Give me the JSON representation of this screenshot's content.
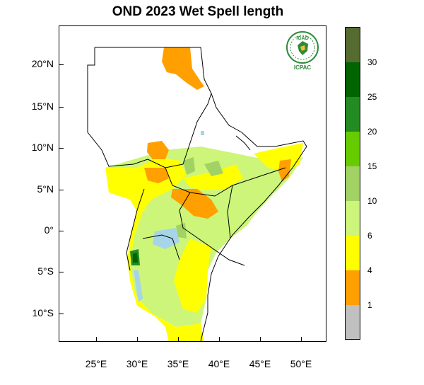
{
  "title": "OND 2023 Wet Spell length",
  "map": {
    "lat_labels": [
      "20°N",
      "15°N",
      "10°N",
      "5°N",
      "0°",
      "5°S",
      "10°S"
    ],
    "lon_labels": [
      "25°E",
      "30°E",
      "35°E",
      "40°E",
      "45°E",
      "50°E"
    ]
  },
  "legend": {
    "labels": [
      "30",
      "25",
      "20",
      "15",
      "10",
      "6",
      "4",
      "1"
    ],
    "colors": [
      "#556b2f",
      "#006400",
      "#228b22",
      "#66cc00",
      "#a1d263",
      "#ccf57a",
      "#ffff00",
      "#ff9f00",
      "#c0c0c0"
    ]
  },
  "logo": {
    "top_text": "IGAD",
    "bottom_text": "ICPAC"
  }
}
